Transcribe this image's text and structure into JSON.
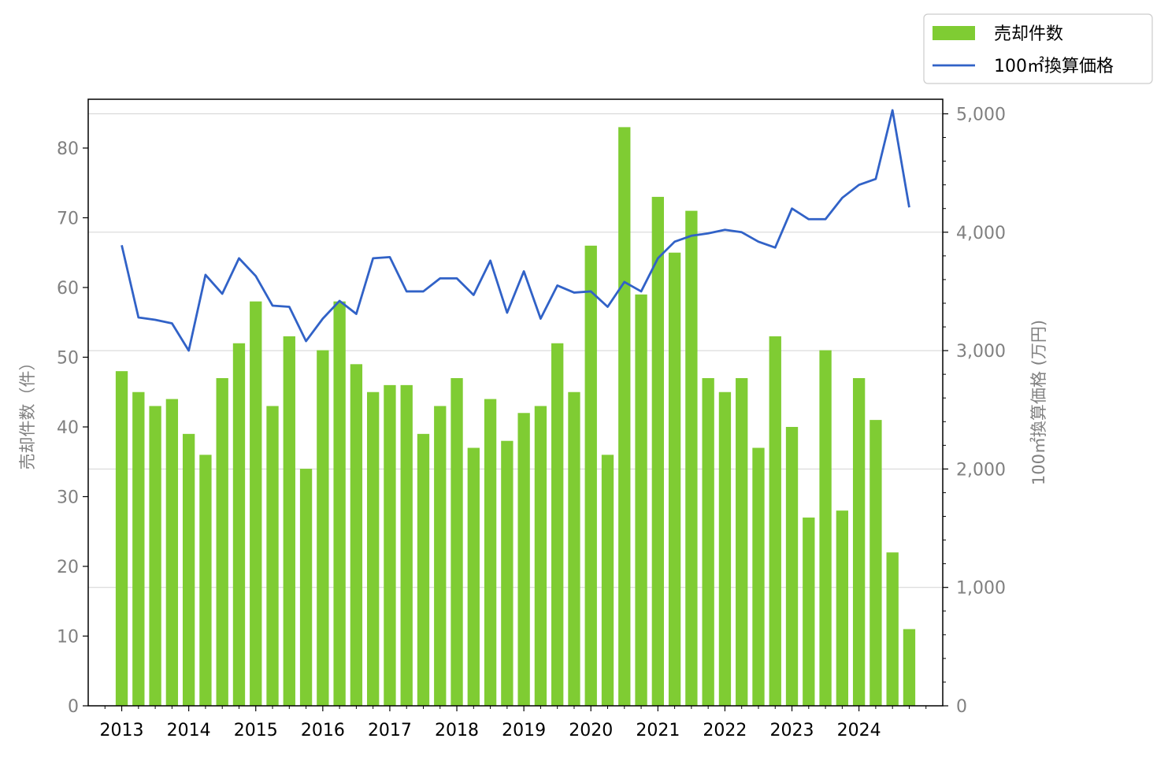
{
  "chart_data": {
    "type": "bar+line",
    "x_labels": [
      "2013",
      "2014",
      "2015",
      "2016",
      "2017",
      "2018",
      "2019",
      "2020",
      "2021",
      "2022",
      "2023",
      "2024"
    ],
    "ylabel_left": "売却件数（件）",
    "ylabel_right": "100㎡換算価格 (万円)",
    "ylim_left": [
      0,
      87
    ],
    "ylim_right": [
      0,
      5123
    ],
    "yticks_left": [
      "0",
      "10",
      "20",
      "30",
      "40",
      "50",
      "60",
      "70",
      "80"
    ],
    "yticks_right": [
      "0",
      "1,000",
      "2,000",
      "3,000",
      "4,000",
      "5,000"
    ],
    "grid": "horizontal, right-axis ticks",
    "legend_position": "top-right outside",
    "legend": {
      "bar": "売却件数",
      "line": "100㎡換算価格"
    },
    "colors": {
      "bar": "#7fcc33",
      "line": "#3162c7",
      "grid": "#d3d3d3",
      "tick_label": "#808080"
    },
    "series": [
      {
        "name": "売却件数",
        "axis": "left",
        "type": "bar",
        "values": [
          48,
          45,
          43,
          44,
          39,
          36,
          47,
          52,
          58,
          43,
          53,
          34,
          51,
          58,
          49,
          45,
          46,
          46,
          39,
          43,
          47,
          37,
          44,
          38,
          42,
          43,
          52,
          45,
          66,
          36,
          83,
          59,
          73,
          65,
          71,
          47,
          45,
          47,
          37,
          53,
          40,
          27,
          51,
          28,
          47,
          41,
          22,
          11
        ]
      },
      {
        "name": "100㎡換算価格",
        "axis": "right",
        "type": "line",
        "values": [
          3890,
          3280,
          3260,
          3230,
          3000,
          3640,
          3480,
          3780,
          3630,
          3380,
          3370,
          3080,
          3270,
          3420,
          3310,
          3780,
          3790,
          3500,
          3500,
          3610,
          3610,
          3470,
          3760,
          3320,
          3670,
          3270,
          3550,
          3490,
          3500,
          3370,
          3580,
          3500,
          3780,
          3920,
          3970,
          3990,
          4020,
          4000,
          3920,
          3870,
          4200,
          4110,
          4110,
          4290,
          4400,
          4450,
          5030,
          4210
        ]
      }
    ]
  }
}
